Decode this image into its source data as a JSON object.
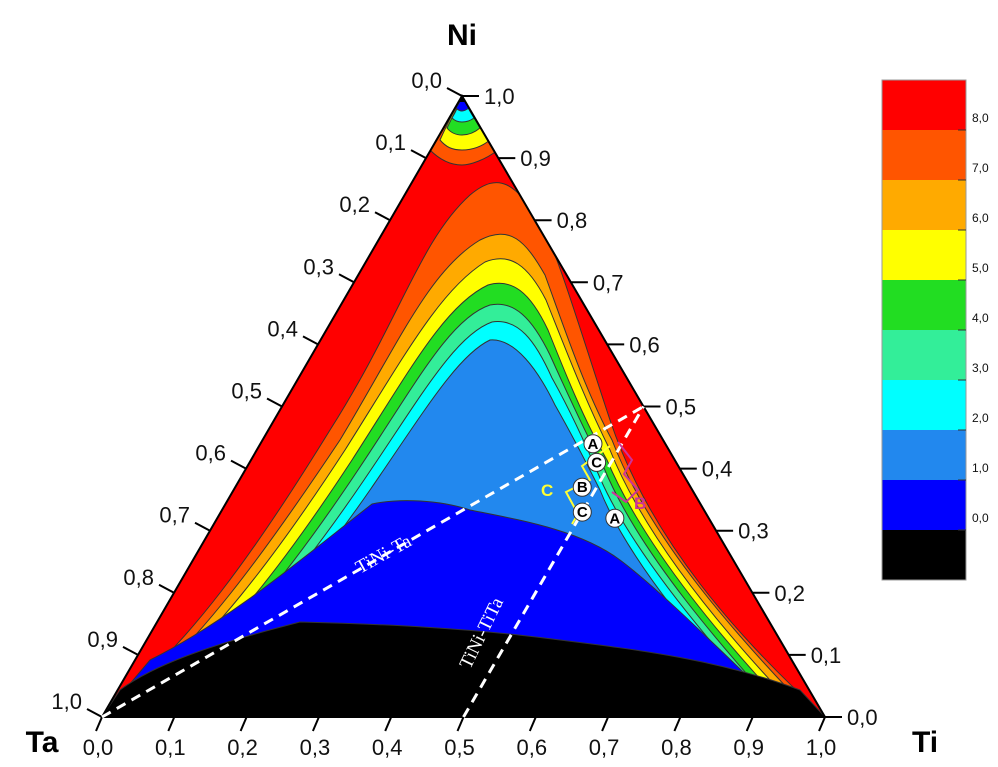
{
  "chart_data": {
    "type": "ternary-contour",
    "vertices": {
      "top": "Ni",
      "left": "Ta",
      "right": "Ti"
    },
    "left_axis_ticks": [
      "0,0",
      "0,1",
      "0,2",
      "0,3",
      "0,4",
      "0,5",
      "0,6",
      "0,7",
      "0,8",
      "0,9",
      "1,0"
    ],
    "right_axis_ticks": [
      "1,0",
      "0,9",
      "0,8",
      "0,7",
      "0,6",
      "0,5",
      "0,4",
      "0,3",
      "0,2",
      "0,1",
      "0,0"
    ],
    "bottom_axis_ticks": [
      "0,0",
      "0,1",
      "0,2",
      "0,3",
      "0,4",
      "0,5",
      "0,6",
      "0,7",
      "0,8",
      "0,9",
      "1,0"
    ],
    "colorbar": {
      "labels": [
        "8,0",
        "7,0",
        "6,0",
        "5,0",
        "4,0",
        "3,0",
        "2,0",
        "1,0",
        "0,0"
      ],
      "levels": [
        {
          "from": 8.0,
          "color": "#ff0000"
        },
        {
          "from": 7.0,
          "to": 8.0,
          "color": "#ff5500"
        },
        {
          "from": 6.0,
          "to": 7.0,
          "color": "#ffaa00"
        },
        {
          "from": 5.0,
          "to": 6.0,
          "color": "#ffff00"
        },
        {
          "from": 4.0,
          "to": 5.0,
          "color": "#22dd22"
        },
        {
          "from": 3.0,
          "to": 4.0,
          "color": "#33ee99"
        },
        {
          "from": 2.0,
          "to": 3.0,
          "color": "#00ffff"
        },
        {
          "from": 1.0,
          "to": 2.0,
          "color": "#2288ee"
        },
        {
          "from": 0.0,
          "to": 1.0,
          "color": "#0000ff"
        },
        {
          "to": 0.0,
          "color": "#000000"
        }
      ]
    },
    "section_lines": [
      {
        "label": "TiNi-Ta",
        "from": {
          "Ni": 0.0,
          "Ti": 0.0,
          "Ta": 1.0
        },
        "to": {
          "Ni": 0.5,
          "Ti": 0.5,
          "Ta": 0.0
        }
      },
      {
        "label": "TiNi-TiTa",
        "from": {
          "Ni": 0.0,
          "Ti": 0.5,
          "Ta": 0.5
        },
        "to": {
          "Ni": 0.5,
          "Ti": 0.5,
          "Ta": 0.0
        }
      }
    ],
    "point_markers": [
      {
        "label": "A",
        "Ni": 0.32,
        "Ti": 0.55
      },
      {
        "label": "A",
        "Ni": 0.44,
        "Ti": 0.46
      },
      {
        "label": "B",
        "Ni": 0.37,
        "Ti": 0.48
      },
      {
        "label": "C",
        "Ni": 0.41,
        "Ti": 0.48
      },
      {
        "label": "C",
        "Ni": 0.33,
        "Ti": 0.5
      }
    ],
    "bracket_labels": [
      {
        "label": "C",
        "color": "#ffff33"
      },
      {
        "label": "B",
        "color": "#cc3399"
      }
    ]
  }
}
